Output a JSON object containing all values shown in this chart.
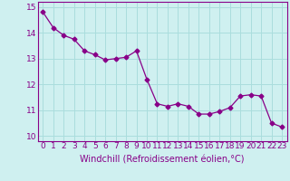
{
  "x": [
    0,
    1,
    2,
    3,
    4,
    5,
    6,
    7,
    8,
    9,
    10,
    11,
    12,
    13,
    14,
    15,
    16,
    17,
    18,
    19,
    20,
    21,
    22,
    23
  ],
  "y": [
    14.8,
    14.2,
    13.9,
    13.75,
    13.3,
    13.15,
    12.95,
    13.0,
    13.05,
    13.3,
    12.2,
    11.25,
    11.15,
    11.25,
    11.15,
    10.85,
    10.85,
    10.95,
    11.1,
    11.55,
    11.6,
    11.55,
    10.5,
    10.35
  ],
  "line_color": "#880088",
  "marker": "D",
  "markersize": 2.5,
  "linewidth": 0.9,
  "bg_color": "#cff0f0",
  "grid_color": "#aadddd",
  "xlabel": "Windchill (Refroidissement éolien,°C)",
  "xlabel_fontsize": 7,
  "xtick_labels": [
    "0",
    "1",
    "2",
    "3",
    "4",
    "5",
    "6",
    "7",
    "8",
    "9",
    "10",
    "11",
    "12",
    "13",
    "14",
    "15",
    "16",
    "17",
    "18",
    "19",
    "20",
    "21",
    "22",
    "23"
  ],
  "ytick_labels": [
    "10",
    "11",
    "12",
    "13",
    "14",
    "15"
  ],
  "yticks": [
    10,
    11,
    12,
    13,
    14,
    15
  ],
  "ylim": [
    9.8,
    15.2
  ],
  "xlim": [
    -0.5,
    23.5
  ],
  "tick_fontsize": 6.5
}
